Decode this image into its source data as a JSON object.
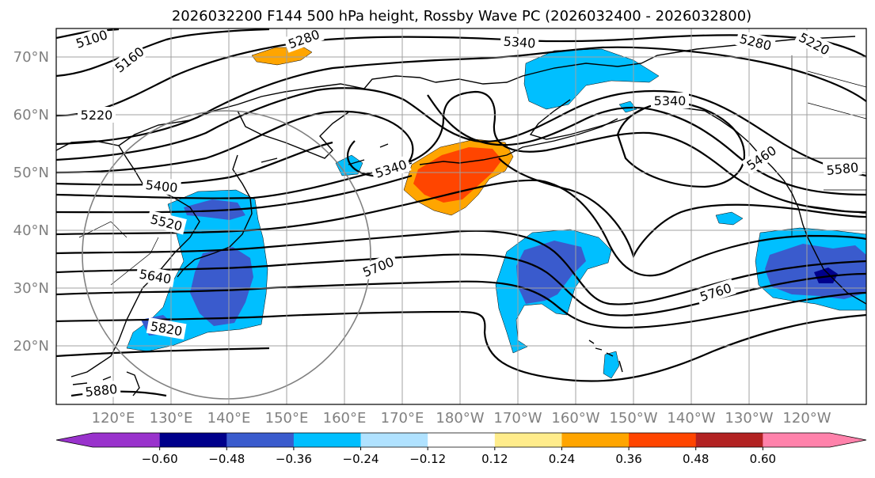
{
  "title": "2026032200 F144 500 hPa height, Rossby Wave PC (2026032400 - 2026032800)",
  "map": {
    "lon_ticks": [
      "120°E",
      "130°E",
      "140°E",
      "150°E",
      "160°E",
      "170°E",
      "180°W",
      "170°W",
      "160°W",
      "150°W",
      "140°W",
      "130°W",
      "120°W"
    ],
    "lat_ticks": [
      "70°N",
      "60°N",
      "50°N",
      "40°N",
      "30°N",
      "20°N"
    ],
    "contour_labels": [
      {
        "id": "c5100",
        "text": "5100"
      },
      {
        "id": "c5160",
        "text": "5160"
      },
      {
        "id": "c5220",
        "text": "5220"
      },
      {
        "id": "c5280a",
        "text": "5280"
      },
      {
        "id": "c5340a",
        "text": "5340"
      },
      {
        "id": "c5280b",
        "text": "5280"
      },
      {
        "id": "c5220b",
        "text": "5220"
      },
      {
        "id": "c5340b",
        "text": "5340"
      },
      {
        "id": "c5340c",
        "text": "5340"
      },
      {
        "id": "c5400",
        "text": "5400"
      },
      {
        "id": "c5460",
        "text": "5460"
      },
      {
        "id": "c5520",
        "text": "5520"
      },
      {
        "id": "c5580",
        "text": "5580"
      },
      {
        "id": "c5640",
        "text": "5640"
      },
      {
        "id": "c5700",
        "text": "5700"
      },
      {
        "id": "c5760",
        "text": "5760"
      },
      {
        "id": "c5820",
        "text": "5820"
      },
      {
        "id": "c5880",
        "text": "5880"
      }
    ]
  },
  "colorbar": {
    "colors": [
      "#9932CC",
      "#00008B",
      "#3A5BCD",
      "#00BFFF",
      "#B0E2FF",
      "#FFFFFF",
      "#FFEC8B",
      "#FFA500",
      "#FF4500",
      "#B22222",
      "#FF82AB"
    ],
    "under_color": "#9932CC",
    "over_color": "#FF82AB",
    "tick_labels": [
      "−0.60",
      "−0.48",
      "−0.36",
      "−0.24",
      "−0.12",
      "0.12",
      "0.24",
      "0.36",
      "0.48",
      "0.60"
    ]
  }
}
